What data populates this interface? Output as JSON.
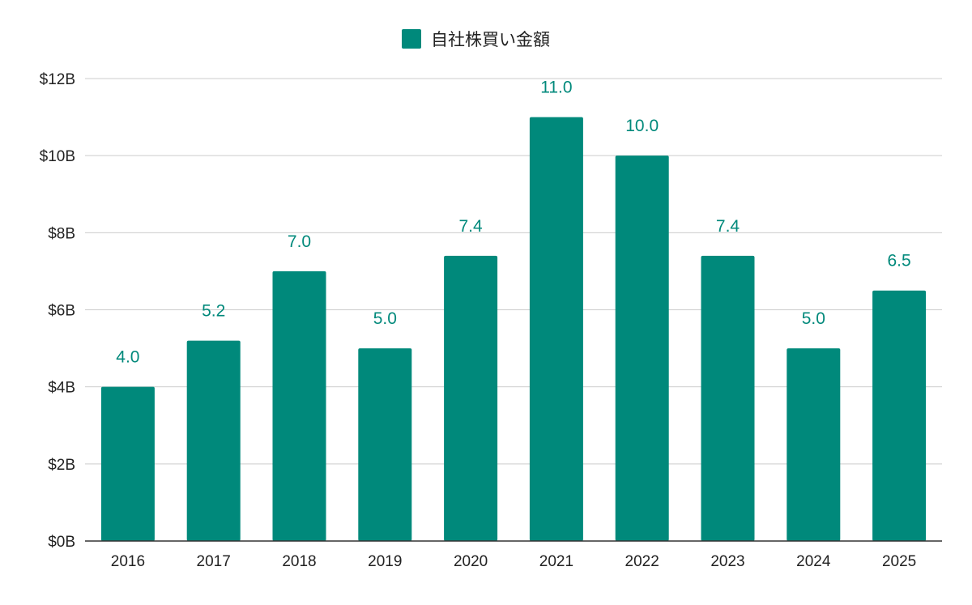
{
  "chart_data": {
    "type": "bar",
    "title": "",
    "xlabel": "",
    "ylabel": "",
    "categories": [
      "2016",
      "2017",
      "2018",
      "2019",
      "2020",
      "2021",
      "2022",
      "2023",
      "2024",
      "2025"
    ],
    "series": [
      {
        "name": "自社株買い金額",
        "values": [
          4.0,
          5.2,
          7.0,
          5.0,
          7.4,
          11.0,
          10.0,
          7.4,
          5.0,
          6.5
        ],
        "data_labels": [
          "4.0",
          "5.2",
          "7.0",
          "5.0",
          "7.4",
          "11.0",
          "10.0",
          "7.4",
          "5.0",
          "6.5"
        ],
        "color": "#00897b"
      }
    ],
    "ylim": [
      0,
      12
    ],
    "yticks": [
      0,
      2,
      4,
      6,
      8,
      10,
      12
    ],
    "ytick_labels": [
      "$0B",
      "$2B",
      "$4B",
      "$6B",
      "$8B",
      "$10B",
      "$12B"
    ],
    "grid": true,
    "legend_position": "top-center"
  },
  "colors": {
    "bar": "#00897b",
    "data_label": "#00897b",
    "gridline": "#cccccc",
    "axis_line": "#333333",
    "tick_text": "#222222",
    "legend_text": "#222222"
  }
}
